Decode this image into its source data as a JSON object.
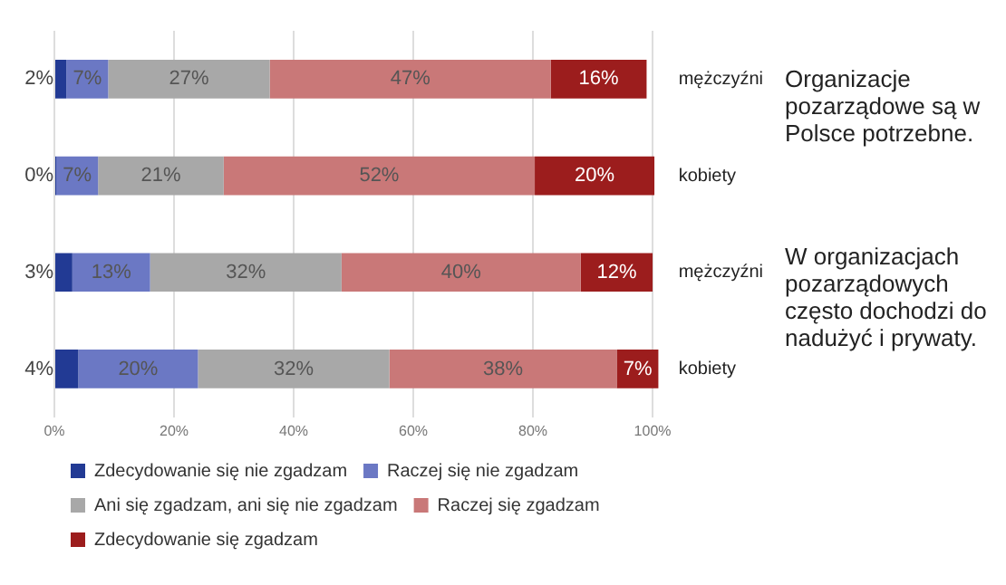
{
  "chart_data": {
    "type": "bar",
    "orientation": "horizontal",
    "stacked": true,
    "categories": [
      "mężczyźni",
      "kobiety",
      "mężczyźni",
      "kobiety"
    ],
    "series": [
      {
        "name": "Zdecydowanie się nie zgadzam",
        "color": "#223a94",
        "values": [
          2,
          0,
          3,
          4
        ],
        "value_labels": [
          "2%",
          "0%",
          "3%",
          "4%"
        ]
      },
      {
        "name": "Raczej się nie zgadzam",
        "color": "#6b78c4",
        "values": [
          7,
          7,
          13,
          20
        ],
        "value_labels": [
          "7%",
          "7%",
          "13%",
          "20%"
        ]
      },
      {
        "name": "Ani się zgadzam, ani się nie zgadzam",
        "color": "#a8a8a8",
        "values": [
          27,
          21,
          32,
          32
        ],
        "value_labels": [
          "27%",
          "21%",
          "32%",
          "32%"
        ]
      },
      {
        "name": "Raczej się zgadzam",
        "color": "#c97878",
        "values": [
          47,
          52,
          40,
          38
        ],
        "value_labels": [
          "47%",
          "52%",
          "40%",
          "38%"
        ]
      },
      {
        "name": "Zdecydowanie się zgadzam",
        "color": "#9c1d1d",
        "values": [
          16,
          20,
          12,
          7
        ],
        "value_labels": [
          "16%",
          "20%",
          "12%",
          "7%"
        ]
      }
    ],
    "xlim": [
      0,
      101
    ],
    "xticks": [
      {
        "value": 0,
        "label": "0%"
      },
      {
        "value": 20,
        "label": "20%"
      },
      {
        "value": 40,
        "label": "40%"
      },
      {
        "value": 60,
        "label": "60%"
      },
      {
        "value": 80,
        "label": "80%"
      },
      {
        "value": 100,
        "label": "100%"
      }
    ],
    "grid": "x",
    "legend": "bottom",
    "annotations": [
      "Organizacje pozarządowe są w Polsce potrzebne.",
      "W organizacjach pozarządowych często dochodzi do nadużyć i prywaty."
    ]
  }
}
